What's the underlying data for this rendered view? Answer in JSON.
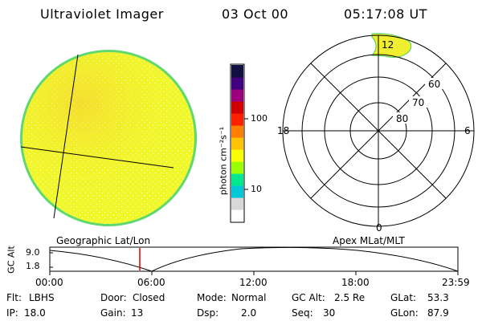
{
  "header": {
    "instrument": "Ultraviolet Imager",
    "date": "03 Oct 00",
    "time": "05:17:08 UT"
  },
  "colorbar": {
    "unit_label": "photon cm⁻²s⁻¹",
    "ticks": [
      {
        "value": 100,
        "label": "100"
      },
      {
        "value": 10,
        "label": "10"
      }
    ],
    "colors": [
      "#ffffff",
      "#d8d8d8",
      "#00c8d8",
      "#00e890",
      "#9aff00",
      "#f8ff00",
      "#ffc400",
      "#ff8000",
      "#ff2000",
      "#d00000",
      "#9c007c",
      "#400080",
      "#101040"
    ]
  },
  "left_panel_label": "Geographic Lat/Lon",
  "right_panel_label": "Apex MLat/MLT",
  "polar_plot": {
    "lat_labels": [
      "60",
      "70",
      "80"
    ],
    "mlt_labels": {
      "top": "12",
      "left": "18",
      "right": "6",
      "bottom": "0"
    }
  },
  "altitude_plot": {
    "axis_label": "GC Alt",
    "y_ticks": [
      "9.0",
      "1.8"
    ],
    "x_ticks": [
      "00:00",
      "06:00",
      "12:00",
      "18:00",
      "23:59"
    ],
    "current_time_marker": "05:17"
  },
  "status": {
    "flt_label": "Flt:",
    "flt_value": "LBHS",
    "door_label": "Door:",
    "door_value": "Closed",
    "mode_label": "Mode:",
    "mode_value": "Normal",
    "gcalt_label": "GC Alt:",
    "gcalt_value": "2.5 Re",
    "glat_label": "GLat:",
    "glat_value": "53.3",
    "ip_label": "IP:",
    "ip_value": "18.0",
    "gain_label": "Gain:",
    "gain_value": "13",
    "dsp_label": "Dsp:",
    "dsp_value": "2.0",
    "seq_label": "Seq:",
    "seq_value": "30",
    "glon_label": "GLon:",
    "glon_value": "87.9"
  }
}
